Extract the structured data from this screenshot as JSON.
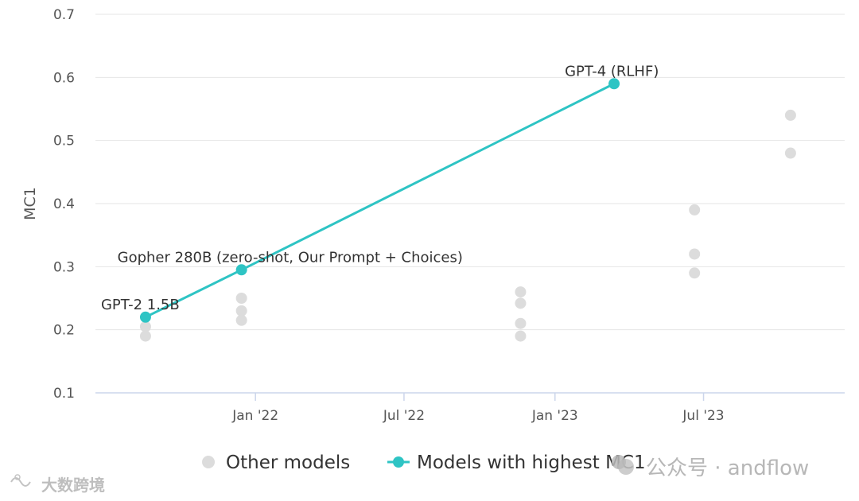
{
  "chart_data": {
    "type": "scatter",
    "ylabel": "MC1",
    "ylim": [
      0.1,
      0.7
    ],
    "y_ticks": [
      0.1,
      0.2,
      0.3,
      0.4,
      0.5,
      0.6,
      0.7
    ],
    "y_tick_labels": [
      "0.1",
      "0.2",
      "0.3",
      "0.4",
      "0.5",
      "0.6",
      "0.7"
    ],
    "xlim": [
      "2021-06-20",
      "2023-12-20"
    ],
    "x_ticks": [
      "2022-01-01",
      "2022-07-01",
      "2023-01-01",
      "2023-07-01"
    ],
    "x_tick_labels": [
      "Jan '22",
      "Jul '22",
      "Jan '23",
      "Jul '23"
    ],
    "grid": true,
    "legend_position": "bottom",
    "series": [
      {
        "name": "Other models",
        "kind": "scatter",
        "color": "#dcdcdc",
        "points": [
          {
            "x": "2021-08-20",
            "y": 0.19
          },
          {
            "x": "2021-08-20",
            "y": 0.205
          },
          {
            "x": "2021-12-15",
            "y": 0.215
          },
          {
            "x": "2021-12-15",
            "y": 0.23
          },
          {
            "x": "2021-12-15",
            "y": 0.25
          },
          {
            "x": "2022-11-20",
            "y": 0.19
          },
          {
            "x": "2022-11-20",
            "y": 0.21
          },
          {
            "x": "2022-11-20",
            "y": 0.242
          },
          {
            "x": "2022-11-20",
            "y": 0.26
          },
          {
            "x": "2023-06-20",
            "y": 0.29
          },
          {
            "x": "2023-06-20",
            "y": 0.32
          },
          {
            "x": "2023-06-20",
            "y": 0.39
          },
          {
            "x": "2023-10-15",
            "y": 0.48
          },
          {
            "x": "2023-10-15",
            "y": 0.54
          }
        ]
      },
      {
        "name": "Models with highest MC1",
        "kind": "line",
        "color": "#2ec4c4",
        "points": [
          {
            "x": "2021-08-20",
            "y": 0.22,
            "label": "GPT-2 1.5B"
          },
          {
            "x": "2021-12-15",
            "y": 0.295,
            "label": "Gopher 280B (zero-shot, Our Prompt + Choices)"
          },
          {
            "x": "2023-03-14",
            "y": 0.59,
            "label": "GPT-4 (RLHF)"
          }
        ]
      }
    ]
  },
  "watermarks": {
    "left": "大数跨境",
    "right": "公众号 · andflow"
  },
  "colors": {
    "grid": "#e6e6e6",
    "axis": "#ccd6eb",
    "accent": "#2ec4c4",
    "other": "#dcdcdc"
  }
}
